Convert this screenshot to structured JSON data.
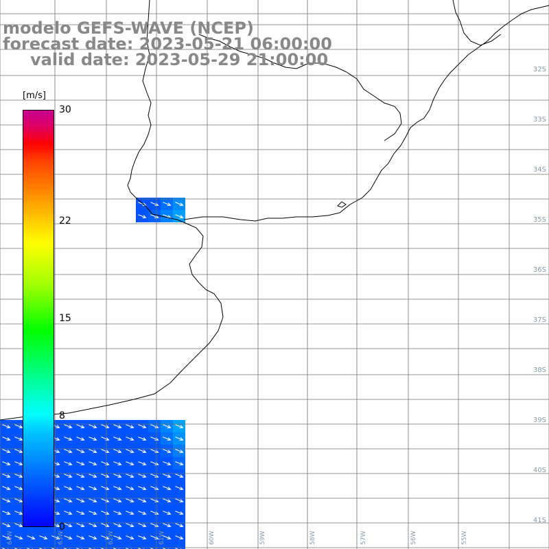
{
  "header": {
    "line1": "modelo GEFS-WAVE (NCEP)",
    "line2": "forecast date: 2023-05-21 06:00:00",
    "line3": "valid date: 2023-05-29 21:00:00"
  },
  "colorbar": {
    "unit": "[m/s]",
    "min": 0,
    "max": 30,
    "ticks": [
      {
        "value": 30,
        "label": "30"
      },
      {
        "value": 22,
        "label": "22"
      },
      {
        "value": 15,
        "label": "15"
      },
      {
        "value": 8,
        "label": "8"
      },
      {
        "value": 0,
        "label": "0"
      }
    ]
  },
  "lat_labels": [
    "32S",
    "33S",
    "34S",
    "35S",
    "36S",
    "37S",
    "38S",
    "39S",
    "40S",
    "41S"
  ],
  "lon_labels": [
    "64W",
    "63W",
    "62W",
    "61W",
    "60W",
    "59W",
    "58W",
    "57W",
    "56W",
    "55W"
  ],
  "field": {
    "variable": "wind speed with direction arrows",
    "units": "m/s",
    "colors": {
      "land": "#ffffff",
      "coast": "#000000",
      "grid": "#707070",
      "arrow": "#ffffff"
    }
  }
}
